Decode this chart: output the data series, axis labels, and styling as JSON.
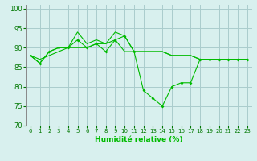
{
  "title": "",
  "xlabel": "Humidité relative (%)",
  "ylabel": "",
  "background_color": "#d8f0ee",
  "grid_color": "#aacccc",
  "line_color": "#00bb00",
  "xlim": [
    -0.5,
    23.5
  ],
  "ylim": [
    70,
    101
  ],
  "yticks": [
    70,
    75,
    80,
    85,
    90,
    95,
    100
  ],
  "xticks": [
    0,
    1,
    2,
    3,
    4,
    5,
    6,
    7,
    8,
    9,
    10,
    11,
    12,
    13,
    14,
    15,
    16,
    17,
    18,
    19,
    20,
    21,
    22,
    23
  ],
  "series1": [
    88,
    86,
    89,
    90,
    90,
    92,
    90,
    91,
    89,
    92,
    93,
    89,
    79,
    77,
    75,
    80,
    81,
    81,
    87,
    87,
    87,
    87,
    87,
    87
  ],
  "series2": [
    88,
    86,
    89,
    90,
    90,
    90,
    90,
    91,
    91,
    92,
    89,
    89,
    89,
    89,
    89,
    88,
    88,
    88,
    87,
    87,
    87,
    87,
    87,
    87
  ],
  "series3": [
    88,
    87,
    88,
    89,
    90,
    94,
    91,
    92,
    91,
    94,
    93,
    89,
    89,
    89,
    89,
    88,
    88,
    88,
    87,
    87,
    87,
    87,
    87,
    87
  ]
}
